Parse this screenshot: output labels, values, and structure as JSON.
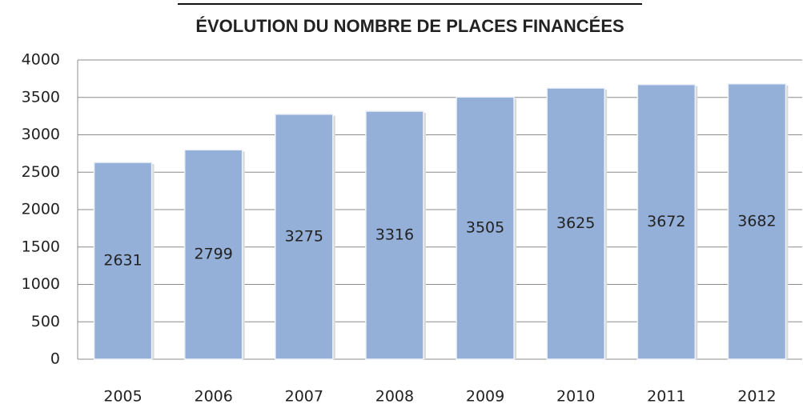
{
  "chart_data": {
    "type": "bar",
    "title": "ÉVOLUTION DU NOMBRE DE PLACES FINANCÉES",
    "categories": [
      "2005",
      "2006",
      "2007",
      "2008",
      "2009",
      "2010",
      "2011",
      "2012"
    ],
    "values": [
      2631,
      2799,
      3275,
      3316,
      3505,
      3625,
      3672,
      3682
    ],
    "color": "#95b0d8",
    "ylim": [
      0,
      4000
    ],
    "yticks": [
      0,
      500,
      1000,
      1500,
      2000,
      2500,
      3000,
      3500,
      4000
    ],
    "grid": true
  }
}
